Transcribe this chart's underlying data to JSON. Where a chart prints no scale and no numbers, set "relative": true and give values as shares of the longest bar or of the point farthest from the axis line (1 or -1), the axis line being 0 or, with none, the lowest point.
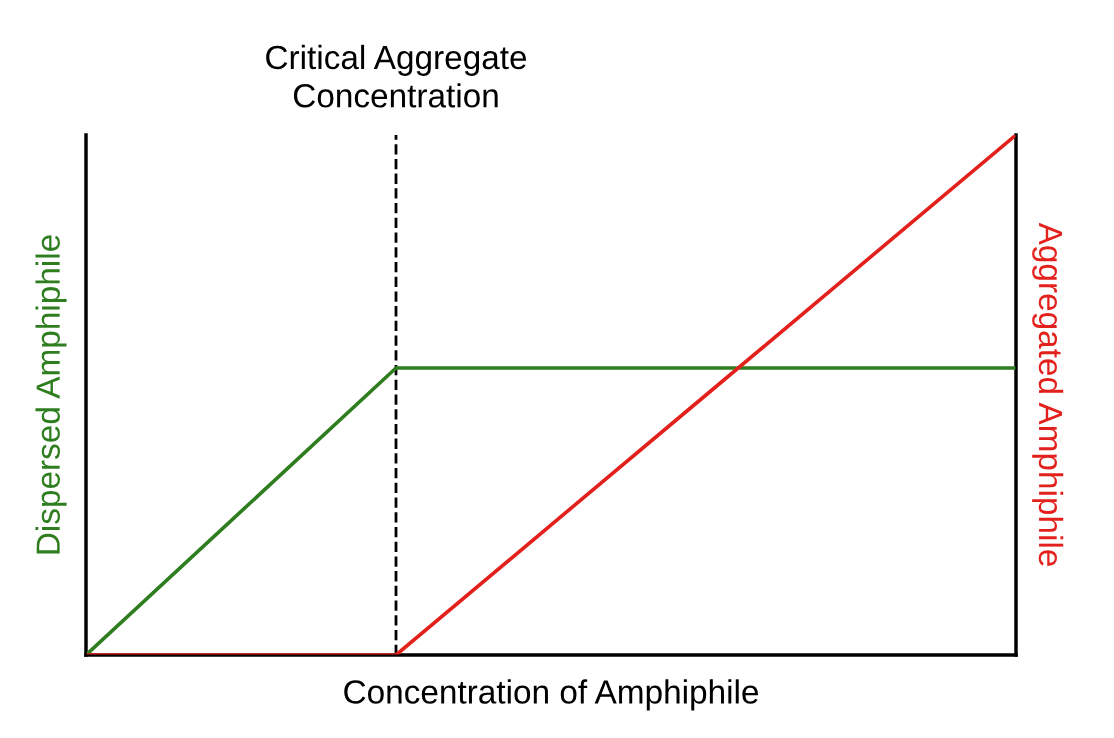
{
  "chart_data": {
    "type": "line",
    "relative": true,
    "xlabel": "Concentration of Amphiphile",
    "ylabel": "Dispersed Amphiphile",
    "y2label": "Aggregated Amphiphile",
    "categories": [
      null,
      null,
      null,
      null
    ],
    "marker": "none",
    "line_style": "solid",
    "series": [
      {
        "color": "#2e7d1f",
        "values": [
          0,
          0.552,
          0.552,
          0.552
        ]
      },
      {
        "color": "#e3211c",
        "values": [
          0,
          0,
          0.5,
          1
        ]
      }
    ],
    "annotations": [
      "Critical Aggregate\nConcentration"
    ]
  }
}
